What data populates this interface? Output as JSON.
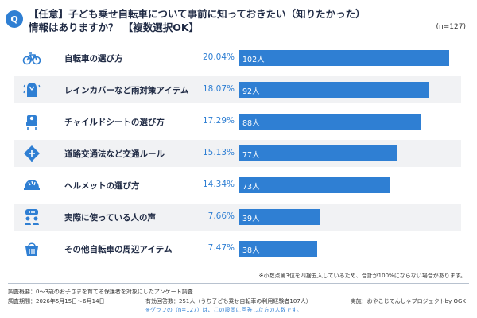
{
  "header": {
    "badge": "Q",
    "title_line1": "【任意】子ども乗せ自転車について事前に知っておきたい（知りたかった）",
    "title_line2": "情報はありますか？　【複数選択OK】",
    "sample": "(n=127)"
  },
  "chart_data": {
    "type": "bar",
    "orientation": "horizontal",
    "categories": [
      "自転車の選び方",
      "レインカバーなど雨対策アイテム",
      "チャイルドシートの選び方",
      "道路交通法など交通ルール",
      "ヘルメットの選び方",
      "実際に使っている人の声",
      "その他自転車の周辺アイテム"
    ],
    "percent_labels": [
      "20.04%",
      "18.07%",
      "17.29%",
      "15.13%",
      "14.34%",
      "7.66%",
      "7.47%"
    ],
    "count_labels": [
      "102人",
      "92人",
      "88人",
      "77人",
      "73人",
      "39人",
      "38人"
    ],
    "values": [
      102,
      92,
      88,
      77,
      73,
      39,
      38
    ],
    "percents": [
      20.04,
      18.07,
      17.29,
      15.13,
      14.34,
      7.66,
      7.47
    ],
    "icons": [
      "bicycle-icon",
      "rain-gear-icon",
      "child-seat-icon",
      "traffic-sign-icon",
      "helmet-icon",
      "speech-people-icon",
      "basket-icon"
    ],
    "bar_color": "#2f7fd3",
    "shaded_rows": [
      false,
      true,
      false,
      true,
      false,
      true,
      false
    ]
  },
  "notes": {
    "rounding": "※小数点第3位を四捨五入しているため、合計が100%にならない場合があります。"
  },
  "footer": {
    "survey_overview": "調査概要：0〜3歳のお子さまを育てる保護者を対象にしたアンケート調査",
    "survey_period": "調査期間：2026年5月15日〜6月14日",
    "valid_responses": "有効回答数：251人（うち子ども乗せ自転車の利用経験者107人）",
    "graph_note": "※グラフの（n=127）は、この設問に回答した方の人数です。",
    "conducted_by": "実施：おやこじてんしゃプロジェクトby OGK"
  },
  "colors": {
    "accent": "#2f7fd3",
    "text": "#1f2a44",
    "row_shade": "#f1f2f4"
  }
}
